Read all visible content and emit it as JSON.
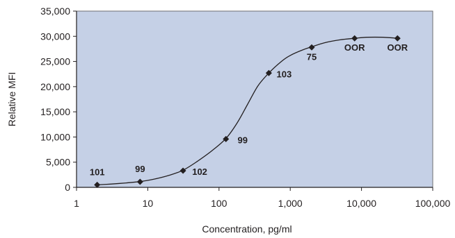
{
  "chart_data": {
    "type": "scatter",
    "title": "",
    "xlabel": "Concentration, pg/ml",
    "ylabel": "Relative MFI",
    "x_scale": "log",
    "xlim": [
      1,
      100000
    ],
    "ylim": [
      0,
      35000
    ],
    "x_ticks": [
      1,
      10,
      100,
      1000,
      10000,
      100000
    ],
    "x_tick_labels": [
      "1",
      "10",
      "100",
      "1,000",
      "10,000",
      "100,000"
    ],
    "y_ticks": [
      0,
      5000,
      10000,
      15000,
      20000,
      25000,
      30000,
      35000
    ],
    "y_tick_labels": [
      "0",
      "5,000",
      "10,000",
      "15,000",
      "20,000",
      "25,000",
      "30,000",
      "35,000"
    ],
    "grid": false,
    "plot_background": "#c5d0e6",
    "marker_color": "#231f20",
    "curve_color": "#231f20",
    "series": [
      {
        "marker": "diamond",
        "points": [
          {
            "x": 1.95,
            "y": 500,
            "label": "101"
          },
          {
            "x": 7.8,
            "y": 1100,
            "label": "99"
          },
          {
            "x": 31.25,
            "y": 3300,
            "label": "102"
          },
          {
            "x": 125,
            "y": 9600,
            "label": "99"
          },
          {
            "x": 500,
            "y": 22700,
            "label": "103"
          },
          {
            "x": 2000,
            "y": 27800,
            "label": "75"
          },
          {
            "x": 8000,
            "y": 29600,
            "label": "OOR"
          },
          {
            "x": 32000,
            "y": 29600,
            "label": "OOR"
          }
        ]
      }
    ],
    "fit_curve": {
      "x": [
        1.95,
        3,
        5,
        7.8,
        12,
        20,
        31.25,
        50,
        80,
        125,
        180,
        250,
        350,
        500,
        750,
        1000,
        1500,
        2000,
        3000,
        5000,
        8000,
        12000,
        20000,
        32000
      ],
      "y": [
        500,
        650,
        880,
        1150,
        1600,
        2400,
        3400,
        5200,
        7300,
        9700,
        12800,
        16400,
        20100,
        22700,
        25000,
        26200,
        27300,
        27900,
        28700,
        29300,
        29600,
        29800,
        29800,
        29600
      ]
    }
  }
}
